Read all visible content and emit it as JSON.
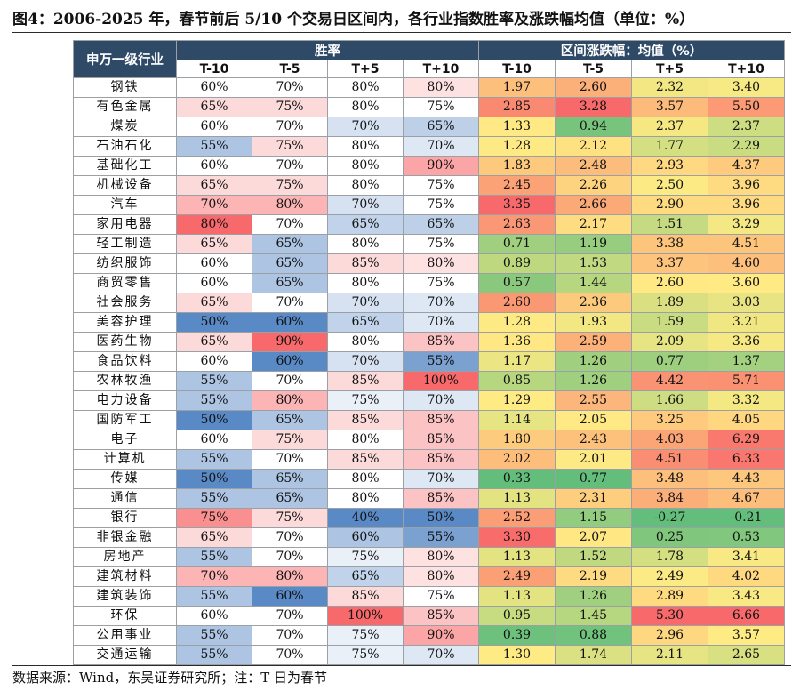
{
  "title": "图4：2006-2025 年，春节前后 5/10 个交易日区间内，各行业指数胜率及涨跌幅均值（单位：%）",
  "source": "数据来源：Wind，东吴证券研究所；注：T 日为春节",
  "table": {
    "corner_label": "申万一级行业",
    "win_rate_header": "胜率",
    "return_header": "区间涨跌幅：均值（%）",
    "win_subheaders": [
      "T-10",
      "T-5",
      "T+5",
      "T+10"
    ],
    "return_subheaders": [
      "T-10",
      "T-5",
      "T+5",
      "T+10"
    ],
    "colors": {
      "header_bg": "#2f4a67",
      "win_high": "#f8696b",
      "win_mid": "#ffffff",
      "win_low": "#5a8ac6",
      "ret_high": "#f8696b",
      "ret_mid": "#ffeb84",
      "ret_low": "#63be7b"
    },
    "rows": [
      {
        "industry": "钢铁",
        "win": [
          "60%",
          "70%",
          "80%",
          "80%"
        ],
        "ret": [
          "1.97",
          "2.60",
          "2.32",
          "3.40"
        ]
      },
      {
        "industry": "有色金属",
        "win": [
          "65%",
          "75%",
          "80%",
          "75%"
        ],
        "ret": [
          "2.85",
          "3.28",
          "3.57",
          "5.50"
        ]
      },
      {
        "industry": "煤炭",
        "win": [
          "60%",
          "70%",
          "70%",
          "65%"
        ],
        "ret": [
          "1.33",
          "0.94",
          "2.37",
          "2.37"
        ]
      },
      {
        "industry": "石油石化",
        "win": [
          "55%",
          "75%",
          "80%",
          "70%"
        ],
        "ret": [
          "1.28",
          "2.12",
          "1.77",
          "2.29"
        ]
      },
      {
        "industry": "基础化工",
        "win": [
          "60%",
          "70%",
          "80%",
          "90%"
        ],
        "ret": [
          "1.83",
          "2.48",
          "2.93",
          "4.37"
        ]
      },
      {
        "industry": "机械设备",
        "win": [
          "65%",
          "75%",
          "80%",
          "75%"
        ],
        "ret": [
          "2.45",
          "2.26",
          "2.50",
          "3.96"
        ]
      },
      {
        "industry": "汽车",
        "win": [
          "70%",
          "80%",
          "70%",
          "75%"
        ],
        "ret": [
          "3.35",
          "2.66",
          "2.90",
          "3.96"
        ]
      },
      {
        "industry": "家用电器",
        "win": [
          "80%",
          "70%",
          "65%",
          "65%"
        ],
        "ret": [
          "2.63",
          "2.17",
          "1.51",
          "3.29"
        ]
      },
      {
        "industry": "轻工制造",
        "win": [
          "65%",
          "65%",
          "80%",
          "75%"
        ],
        "ret": [
          "0.71",
          "1.19",
          "3.38",
          "4.51"
        ]
      },
      {
        "industry": "纺织服饰",
        "win": [
          "60%",
          "65%",
          "85%",
          "80%"
        ],
        "ret": [
          "0.89",
          "1.53",
          "3.37",
          "4.60"
        ]
      },
      {
        "industry": "商贸零售",
        "win": [
          "60%",
          "65%",
          "80%",
          "75%"
        ],
        "ret": [
          "0.57",
          "1.44",
          "2.60",
          "3.60"
        ]
      },
      {
        "industry": "社会服务",
        "win": [
          "65%",
          "70%",
          "70%",
          "70%"
        ],
        "ret": [
          "2.60",
          "2.36",
          "1.89",
          "3.03"
        ]
      },
      {
        "industry": "美容护理",
        "win": [
          "50%",
          "60%",
          "65%",
          "70%"
        ],
        "ret": [
          "1.28",
          "1.93",
          "1.59",
          "3.21"
        ]
      },
      {
        "industry": "医药生物",
        "win": [
          "65%",
          "90%",
          "80%",
          "85%"
        ],
        "ret": [
          "1.36",
          "2.59",
          "2.09",
          "3.36"
        ]
      },
      {
        "industry": "食品饮料",
        "win": [
          "60%",
          "60%",
          "70%",
          "55%"
        ],
        "ret": [
          "1.17",
          "1.26",
          "0.77",
          "1.37"
        ]
      },
      {
        "industry": "农林牧渔",
        "win": [
          "55%",
          "70%",
          "85%",
          "100%"
        ],
        "ret": [
          "0.85",
          "1.26",
          "4.42",
          "5.71"
        ]
      },
      {
        "industry": "电力设备",
        "win": [
          "55%",
          "80%",
          "75%",
          "70%"
        ],
        "ret": [
          "1.29",
          "2.55",
          "1.66",
          "3.32"
        ]
      },
      {
        "industry": "国防军工",
        "win": [
          "50%",
          "65%",
          "85%",
          "85%"
        ],
        "ret": [
          "1.14",
          "2.05",
          "3.25",
          "4.05"
        ]
      },
      {
        "industry": "电子",
        "win": [
          "60%",
          "75%",
          "80%",
          "85%"
        ],
        "ret": [
          "1.80",
          "2.43",
          "4.03",
          "6.29"
        ]
      },
      {
        "industry": "计算机",
        "win": [
          "55%",
          "70%",
          "85%",
          "85%"
        ],
        "ret": [
          "2.02",
          "2.01",
          "4.51",
          "6.33"
        ]
      },
      {
        "industry": "传媒",
        "win": [
          "50%",
          "65%",
          "80%",
          "70%"
        ],
        "ret": [
          "0.33",
          "0.77",
          "3.48",
          "4.43"
        ]
      },
      {
        "industry": "通信",
        "win": [
          "55%",
          "65%",
          "80%",
          "85%"
        ],
        "ret": [
          "1.13",
          "2.31",
          "3.84",
          "4.67"
        ]
      },
      {
        "industry": "银行",
        "win": [
          "75%",
          "75%",
          "40%",
          "50%"
        ],
        "ret": [
          "2.52",
          "1.15",
          "-0.27",
          "-0.21"
        ]
      },
      {
        "industry": "非银金融",
        "win": [
          "65%",
          "70%",
          "60%",
          "55%"
        ],
        "ret": [
          "3.30",
          "2.07",
          "0.25",
          "0.53"
        ]
      },
      {
        "industry": "房地产",
        "win": [
          "55%",
          "70%",
          "75%",
          "80%"
        ],
        "ret": [
          "1.13",
          "1.52",
          "1.78",
          "3.41"
        ]
      },
      {
        "industry": "建筑材料",
        "win": [
          "70%",
          "80%",
          "65%",
          "80%"
        ],
        "ret": [
          "2.49",
          "2.19",
          "2.49",
          "4.02"
        ]
      },
      {
        "industry": "建筑装饰",
        "win": [
          "55%",
          "60%",
          "85%",
          "75%"
        ],
        "ret": [
          "1.13",
          "1.26",
          "2.89",
          "3.43"
        ]
      },
      {
        "industry": "环保",
        "win": [
          "60%",
          "70%",
          "100%",
          "85%"
        ],
        "ret": [
          "0.95",
          "1.45",
          "5.30",
          "6.66"
        ]
      },
      {
        "industry": "公用事业",
        "win": [
          "55%",
          "70%",
          "75%",
          "90%"
        ],
        "ret": [
          "0.39",
          "0.88",
          "2.96",
          "3.57"
        ]
      },
      {
        "industry": "交通运输",
        "win": [
          "55%",
          "70%",
          "75%",
          "70%"
        ],
        "ret": [
          "1.30",
          "1.74",
          "2.11",
          "2.65"
        ]
      }
    ]
  }
}
